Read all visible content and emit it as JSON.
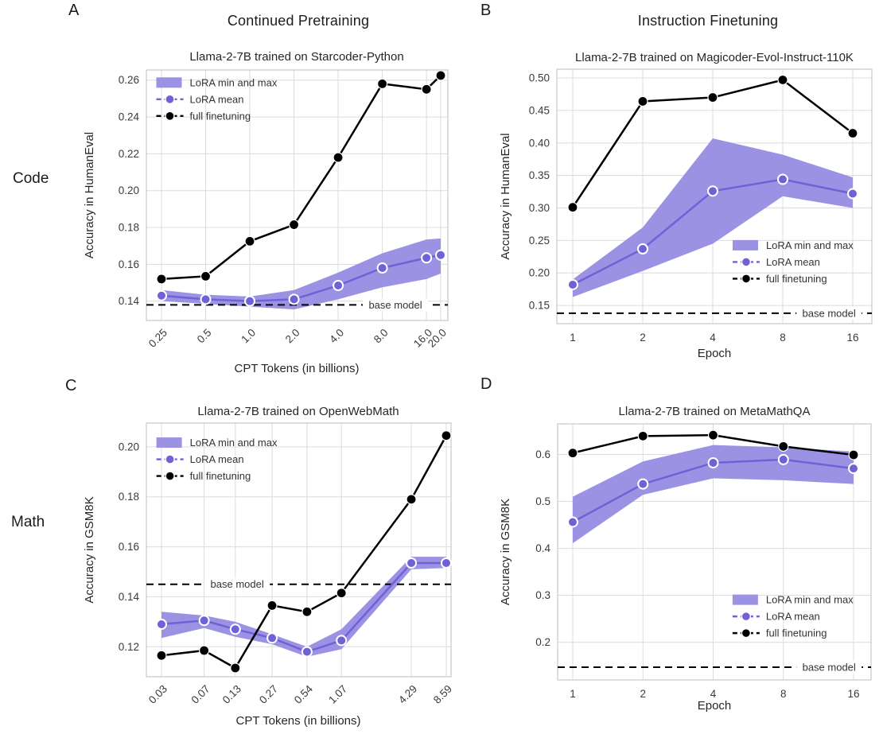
{
  "labels": {
    "letter_a": "A",
    "letter_b": "B",
    "letter_c": "C",
    "letter_d": "D",
    "column_left": "Continued Pretraining",
    "column_right": "Instruction Finetuning",
    "row_top": "Code",
    "row_bottom": "Math"
  },
  "colors": {
    "lora_band": "#9c92e4",
    "lora_mean": "#6f61d6",
    "full_finetuning": "#000000",
    "base_model_line": "#000000",
    "grid": "#dcdcdc",
    "spine": "#c9c9c9",
    "text": "#333333"
  },
  "chart_data": [
    {
      "id": "A",
      "row": "Code",
      "column": "Continued Pretraining",
      "type": "line",
      "title": "Llama-2-7B trained on Starcoder-Python",
      "xlabel": "CPT Tokens (in billions)",
      "ylabel": "Accuracy in HumanEval",
      "x_scale": "log2",
      "x": [
        0.25,
        0.5,
        1.0,
        2.0,
        4.0,
        8.0,
        16.0,
        20.0
      ],
      "x_tick_labels": [
        "0.25",
        "0.5",
        "1.0",
        "2.0",
        "4.0",
        "8.0",
        "16.0",
        "20.0"
      ],
      "x_ticks_rotated": true,
      "y_ticks": [
        0.14,
        0.16,
        0.18,
        0.2,
        0.22,
        0.24,
        0.26
      ],
      "y_tick_labels": [
        "0.14",
        "0.16",
        "0.18",
        "0.20",
        "0.22",
        "0.24",
        "0.26"
      ],
      "ylim": [
        0.1295,
        0.2655
      ],
      "grid": true,
      "legend_position": "upper left",
      "series": [
        {
          "name": "LoRA min and max",
          "type": "band",
          "min": [
            0.14,
            0.1385,
            0.137,
            0.1355,
            0.141,
            0.1475,
            0.152,
            0.155
          ],
          "max": [
            0.146,
            0.1435,
            0.1425,
            0.146,
            0.1555,
            0.166,
            0.1735,
            0.174
          ]
        },
        {
          "name": "LoRA mean",
          "type": "line",
          "values": [
            0.143,
            0.141,
            0.14,
            0.141,
            0.1485,
            0.158,
            0.1635,
            0.165
          ]
        },
        {
          "name": "full finetuning",
          "type": "line",
          "values": [
            0.152,
            0.1535,
            0.1725,
            0.1815,
            0.218,
            0.258,
            0.255,
            0.2625
          ]
        }
      ],
      "base_model": {
        "label": "base model",
        "value": 0.138
      }
    },
    {
      "id": "B",
      "row": "Code",
      "column": "Instruction Finetuning",
      "type": "line",
      "title": "Llama-2-7B trained on Magicoder-Evol-Instruct-110K",
      "xlabel": "Epoch",
      "ylabel": "Accuracy in HumanEval",
      "x_scale": "log2",
      "x": [
        1,
        2,
        4,
        8,
        16
      ],
      "x_tick_labels": [
        "1",
        "2",
        "4",
        "8",
        "16"
      ],
      "x_ticks_rotated": false,
      "y_ticks": [
        0.15,
        0.2,
        0.25,
        0.3,
        0.35,
        0.4,
        0.45,
        0.5
      ],
      "y_tick_labels": [
        "0.15",
        "0.20",
        "0.25",
        "0.30",
        "0.35",
        "0.40",
        "0.45",
        "0.50"
      ],
      "ylim": [
        0.122,
        0.5135
      ],
      "grid": true,
      "legend_position": "center right",
      "series": [
        {
          "name": "LoRA min and max",
          "type": "band",
          "min": [
            0.163,
            0.203,
            0.245,
            0.318,
            0.3
          ],
          "max": [
            0.19,
            0.27,
            0.407,
            0.382,
            0.347
          ]
        },
        {
          "name": "LoRA mean",
          "type": "line",
          "values": [
            0.182,
            0.237,
            0.326,
            0.344,
            0.322
          ]
        },
        {
          "name": "full finetuning",
          "type": "line",
          "values": [
            0.301,
            0.464,
            0.47,
            0.497,
            0.415
          ]
        }
      ],
      "base_model": {
        "label": "base model",
        "value": 0.138
      }
    },
    {
      "id": "C",
      "row": "Math",
      "column": "Continued Pretraining",
      "type": "line",
      "title": "Llama-2-7B trained on OpenWebMath",
      "xlabel": "CPT Tokens (in billions)",
      "ylabel": "Accuracy in GSM8K",
      "x_scale": "log2",
      "x": [
        0.03,
        0.07,
        0.13,
        0.27,
        0.54,
        1.07,
        4.29,
        8.59
      ],
      "x_tick_labels": [
        "0.03",
        "0.07",
        "0.13",
        "0.27",
        "0.54",
        "1.07",
        "4.29",
        "8.59"
      ],
      "x_ticks_rotated": true,
      "y_ticks": [
        0.12,
        0.14,
        0.16,
        0.18,
        0.2
      ],
      "y_tick_labels": [
        "0.12",
        "0.14",
        "0.16",
        "0.18",
        "0.20"
      ],
      "ylim": [
        0.108,
        0.2095
      ],
      "grid": true,
      "legend_position": "upper left",
      "series": [
        {
          "name": "LoRA min and max",
          "type": "band",
          "min": [
            0.1235,
            0.1275,
            0.124,
            0.121,
            0.116,
            0.119,
            0.151,
            0.1515
          ],
          "max": [
            0.134,
            0.1325,
            0.13,
            0.125,
            0.12,
            0.127,
            0.156,
            0.156
          ]
        },
        {
          "name": "LoRA mean",
          "type": "line",
          "values": [
            0.129,
            0.1305,
            0.127,
            0.1235,
            0.118,
            0.1225,
            0.1535,
            0.1535
          ]
        },
        {
          "name": "full finetuning",
          "type": "line",
          "values": [
            0.1165,
            0.1185,
            0.1115,
            0.1365,
            0.134,
            0.1415,
            0.179,
            0.2045
          ]
        }
      ],
      "base_model": {
        "label": "base model",
        "value": 0.145
      }
    },
    {
      "id": "D",
      "row": "Math",
      "column": "Instruction Finetuning",
      "type": "line",
      "title": "Llama-2-7B trained on MetaMathQA",
      "xlabel": "Epoch",
      "ylabel": "Accuracy in GSM8K",
      "x_scale": "log2",
      "x": [
        1,
        2,
        4,
        8,
        16
      ],
      "x_tick_labels": [
        "1",
        "2",
        "4",
        "8",
        "16"
      ],
      "x_ticks_rotated": false,
      "y_ticks": [
        0.2,
        0.3,
        0.4,
        0.5,
        0.6
      ],
      "y_tick_labels": [
        "0.2",
        "0.3",
        "0.4",
        "0.5",
        "0.6"
      ],
      "ylim": [
        0.12,
        0.665
      ],
      "grid": true,
      "legend_position": "center right",
      "series": [
        {
          "name": "LoRA min and max",
          "type": "band",
          "min": [
            0.411,
            0.514,
            0.549,
            0.545,
            0.537
          ],
          "max": [
            0.51,
            0.585,
            0.62,
            0.615,
            0.606
          ]
        },
        {
          "name": "LoRA mean",
          "type": "line",
          "values": [
            0.456,
            0.537,
            0.582,
            0.589,
            0.57
          ]
        },
        {
          "name": "full finetuning",
          "type": "line",
          "values": [
            0.603,
            0.639,
            0.641,
            0.617,
            0.599
          ]
        }
      ],
      "base_model": {
        "label": "base model",
        "value": 0.147
      }
    }
  ]
}
